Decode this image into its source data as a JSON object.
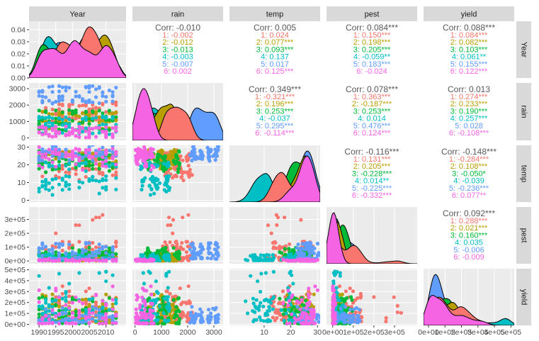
{
  "chart_data": {
    "type": "pairs",
    "variables": [
      "Year",
      "rain",
      "temp",
      "pest",
      "yield"
    ],
    "groups": [
      "1",
      "2",
      "3",
      "4",
      "5",
      "6"
    ],
    "colors": [
      "#F8766D",
      "#B79F00",
      "#00BA38",
      "#00BFC4",
      "#619CFF",
      "#F564E3"
    ],
    "correlations": [
      {
        "row": "Year",
        "col": "rain",
        "overall": "Corr: -0.010",
        "groups": [
          "1: -0.002",
          "2: -0.012",
          "3: -0.013",
          "4: -0.003",
          "5: -0.007",
          "6: 0.002"
        ]
      },
      {
        "row": "Year",
        "col": "temp",
        "overall": "Corr: 0.005",
        "groups": [
          "1: 0.024",
          "2: 0.077***",
          "3: 0.093***",
          "4: 0.137",
          "5: 0.017",
          "6: 0.125***"
        ]
      },
      {
        "row": "Year",
        "col": "pest",
        "overall": "Corr: 0.084***",
        "groups": [
          "1: 0.150***",
          "2: 0.198***",
          "3: 0.205***",
          "4: -0.059**",
          "5: 0.183***",
          "6: -0.024"
        ]
      },
      {
        "row": "Year",
        "col": "yield",
        "overall": "Corr: 0.088***",
        "groups": [
          "1: 0.084***",
          "2: 0.082***",
          "3: 0.103***",
          "4: 0.061**",
          "5: 0.155***",
          "6: 0.122***"
        ]
      },
      {
        "row": "rain",
        "col": "temp",
        "overall": "Corr: 0.349***",
        "groups": [
          "1: -0.321***",
          "2: 0.196***",
          "3: 0.253***",
          "4: -0.037",
          "5: 0.295***",
          "6: -0.114***"
        ]
      },
      {
        "row": "rain",
        "col": "pest",
        "overall": "Corr: 0.078***",
        "groups": [
          "1: 0.363***",
          "2: -0.187***",
          "3: 0.253***",
          "4: 0.014",
          "5: 0.476***",
          "6: 0.124***"
        ]
      },
      {
        "row": "rain",
        "col": "yield",
        "overall": "Corr: 0.013",
        "groups": [
          "1: 0.274***",
          "2: 0.233***",
          "3: 0.190***",
          "4: 0.257***",
          "5: 0.028",
          "6: -0.108***"
        ]
      },
      {
        "row": "temp",
        "col": "pest",
        "overall": "Corr: -0.116***",
        "groups": [
          "1: 0.131***",
          "2: 0.205***",
          "3: -0.228***",
          "4: 0.014**",
          "5: -0.225***",
          "6: -0.332***"
        ]
      },
      {
        "row": "temp",
        "col": "yield",
        "overall": "Corr: -0.148***",
        "groups": [
          "1: -0.284***",
          "2: 0.108***",
          "3: -0.050*",
          "4: -0.039",
          "5: -0.236***",
          "6: 0.077**"
        ]
      },
      {
        "row": "pest",
        "col": "yield",
        "overall": "Corr: 0.092***",
        "groups": [
          "1: 0.288***",
          "2: 0.021***",
          "3: 0.160***",
          "4: 0.035",
          "5: -0.006",
          "6: -0.009"
        ]
      }
    ],
    "axes": {
      "x": {
        "Year": {
          "range": [
            1987,
            2016
          ],
          "ticks": [
            "1990",
            "1995",
            "2000",
            "2005",
            "2010"
          ]
        },
        "rain": {
          "range": [
            -100,
            3350
          ],
          "ticks": [
            "0",
            "1000",
            "2000",
            "3000"
          ]
        },
        "temp": {
          "range": [
            -3,
            31
          ],
          "ticks": [
            "10",
            "20",
            "30"
          ]
        },
        "pest": {
          "range": [
            -30000,
            410000
          ],
          "ticks": [
            "0e+00",
            "1e+05",
            "2e+05",
            "3e+05"
          ]
        },
        "yield": {
          "range": [
            -30000,
            520000
          ],
          "ticks": [
            "0e+00",
            "1e+05",
            "2e+05",
            "3e+05",
            "4e+05",
            "5e+05"
          ]
        }
      },
      "y": {
        "Year": {
          "range": [
            0,
            0.047
          ],
          "ticks": [
            "0.00",
            "0.01",
            "0.02",
            "0.03",
            "0.04"
          ]
        },
        "rain": {
          "range": [
            -150,
            3350
          ],
          "ticks": [
            "0",
            "1000",
            "2000",
            "3000"
          ]
        },
        "temp": {
          "range": [
            -1,
            31
          ],
          "ticks": [
            "0",
            "10",
            "20",
            "30"
          ]
        },
        "pest": {
          "range": [
            -20000,
            390000
          ],
          "ticks": [
            "0e+00",
            "1e+05",
            "2e+05",
            "3e+05"
          ]
        },
        "yield": {
          "range": [
            -10000,
            510000
          ],
          "ticks": [
            "0e+00",
            "1e+05",
            "2e+05",
            "3e+05",
            "4e+05",
            "5e+05"
          ]
        }
      }
    }
  }
}
